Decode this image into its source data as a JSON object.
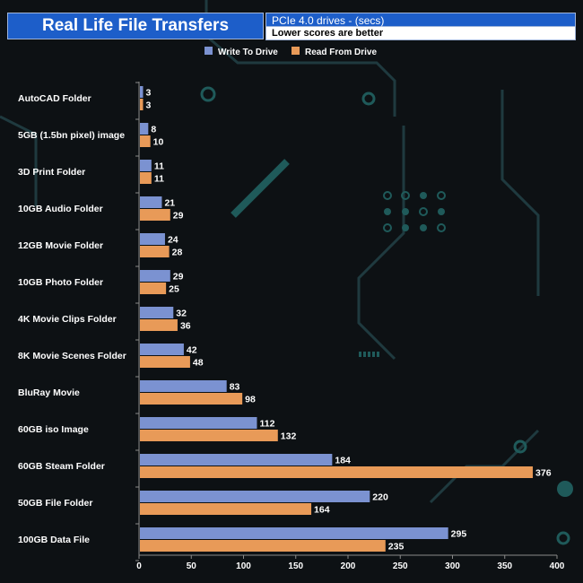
{
  "header": {
    "title": "Real Life File Transfers",
    "subtitle": "PCIe 4.0 drives - (secs)",
    "note": "Lower scores are better"
  },
  "colors": {
    "write": "#7b92d1",
    "read": "#e89a58",
    "background": "#0d1114",
    "text": "#ffffff",
    "header_bg": "#1d5ec9"
  },
  "chart_data": {
    "type": "bar",
    "orientation": "horizontal",
    "title": "Real Life File Transfers",
    "categories": [
      "AutoCAD Folder",
      "5GB (1.5bn pixel) image",
      "3D Print Folder",
      "10GB Audio Folder",
      "12GB Movie Folder",
      "10GB Photo Folder",
      "4K Movie Clips Folder",
      "8K Movie Scenes Folder",
      "BluRay Movie",
      "60GB iso Image",
      "60GB Steam Folder",
      "50GB File Folder",
      "100GB Data File"
    ],
    "series": [
      {
        "name": "Write To  Drive",
        "values": [
          3,
          8,
          11,
          21,
          24,
          29,
          32,
          42,
          83,
          112,
          184,
          220,
          295
        ]
      },
      {
        "name": "Read From  Drive",
        "values": [
          3,
          10,
          11,
          29,
          28,
          25,
          36,
          48,
          98,
          132,
          376,
          164,
          235
        ]
      }
    ],
    "xlim": [
      0,
      400
    ],
    "xticks": [
      0,
      50,
      100,
      150,
      200,
      250,
      300,
      350,
      400
    ],
    "legend_position": "top-center",
    "grid": false
  }
}
